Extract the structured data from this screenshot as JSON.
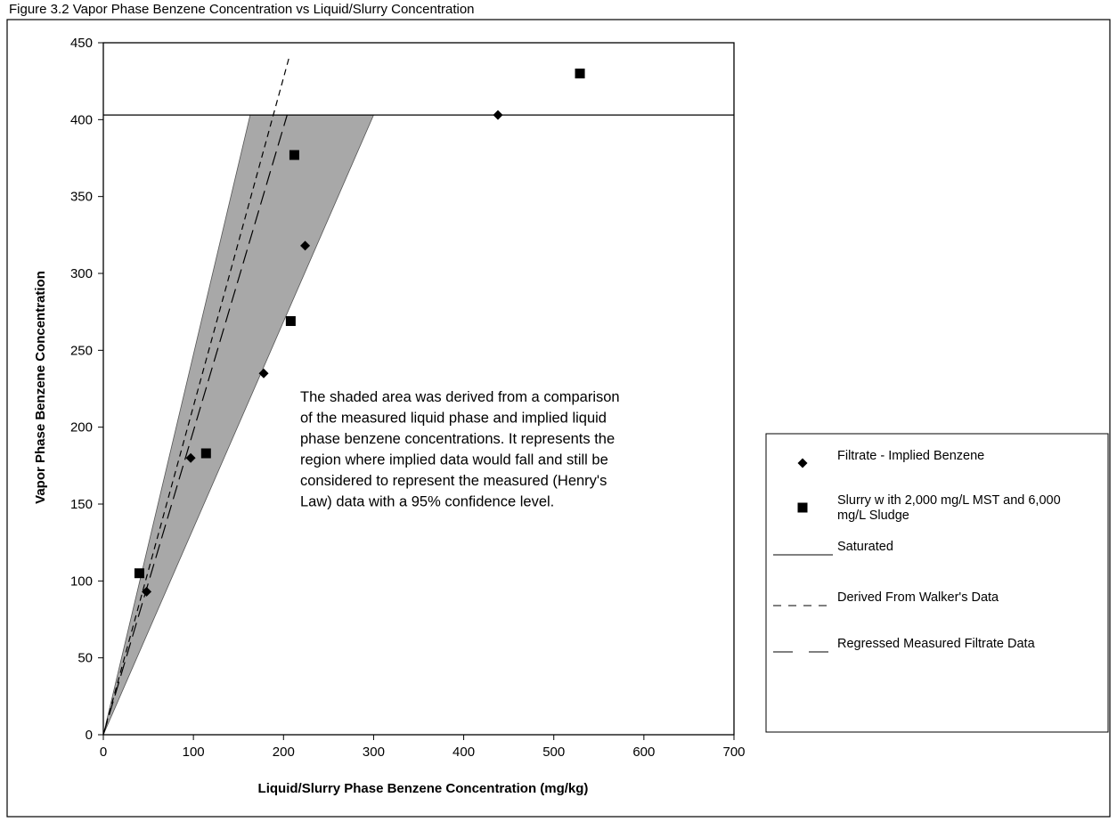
{
  "figure_caption": "Figure 3.2 Vapor Phase Benzene Concentration vs Liquid/Slurry Concentration",
  "annotation": [
    "The shaded area was derived from a comparison",
    "of the measured liquid phase and implied liquid",
    "phase benzene concentrations.  It represents the",
    "region where implied data would fall and still be",
    "considered to represent the measured (Henry's",
    "Law) data with a 95% confidence level."
  ],
  "colors": {
    "shade": "#a8a8a8",
    "ink": "#000000",
    "background": "#ffffff"
  },
  "chart_data": {
    "type": "scatter",
    "xlabel": "Liquid/Slurry Phase Benzene Concentration (mg/kg)",
    "ylabel": "Vapor Phase Benzene Concentration",
    "xlim": [
      0,
      700
    ],
    "ylim": [
      0,
      450
    ],
    "x_ticks": [
      "0",
      "100",
      "200",
      "300",
      "400",
      "500",
      "600",
      "700"
    ],
    "y_ticks": [
      "0",
      "50",
      "100",
      "150",
      "200",
      "250",
      "300",
      "350",
      "400",
      "450"
    ],
    "grid": false,
    "legend_position": "right",
    "shaded_region": {
      "points": [
        [
          0,
          0
        ],
        [
          163,
          403
        ],
        [
          300,
          403
        ]
      ]
    },
    "series": [
      {
        "name": "Filtrate - Implied Benzene",
        "marker": "diamond",
        "points": [
          [
            48,
            93
          ],
          [
            97,
            180
          ],
          [
            178,
            235
          ],
          [
            224,
            318
          ],
          [
            438,
            403
          ]
        ]
      },
      {
        "name": "Slurry w ith 2,000 mg/L MST and 6,000 mg/L Sludge",
        "marker": "square",
        "points": [
          [
            40,
            105
          ],
          [
            114,
            183
          ],
          [
            208,
            269
          ],
          [
            212,
            377
          ],
          [
            529,
            430
          ]
        ]
      },
      {
        "name": "Saturated",
        "line": "solid",
        "points": [
          [
            0,
            403
          ],
          [
            700,
            403
          ]
        ]
      },
      {
        "name": "Derived From Walker's Data",
        "line": "dashed",
        "points": [
          [
            0,
            0
          ],
          [
            206,
            440
          ]
        ]
      },
      {
        "name": "Regressed Measured Filtrate Data",
        "line": "long-dash",
        "points": [
          [
            0,
            0
          ],
          [
            204,
            403
          ]
        ]
      }
    ]
  }
}
